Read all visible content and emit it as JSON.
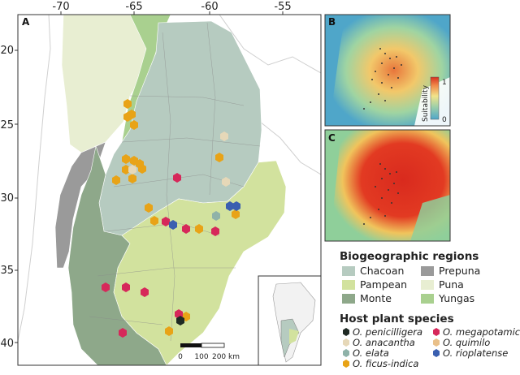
{
  "panels": {
    "a": "A",
    "b": "B",
    "c": "C"
  },
  "axes": {
    "x_ticks": [
      "-70",
      "-65",
      "-60",
      "-55"
    ],
    "y_ticks": [
      "20",
      "25",
      "30",
      "35",
      "40"
    ]
  },
  "scale_bar": {
    "labels": [
      "0",
      "100",
      "200 km"
    ]
  },
  "suitability_legend": {
    "title": "Suitability",
    "max": "1",
    "min": "0"
  },
  "regions_legend": {
    "title": "Biogeographic regions",
    "items": [
      {
        "label": "Chacoan",
        "color": "#b6cbc0"
      },
      {
        "label": "Pampean",
        "color": "#d2e29e"
      },
      {
        "label": "Monte",
        "color": "#8ea88a"
      },
      {
        "label": "Prepuna",
        "color": "#9a9a9a"
      },
      {
        "label": "Puna",
        "color": "#e8eed2"
      },
      {
        "label": "Yungas",
        "color": "#a9d08f"
      }
    ]
  },
  "species_legend": {
    "title": "Host plant species",
    "items": [
      {
        "label": "O. penicilligera",
        "color": "#1f2a24"
      },
      {
        "label": "O. anacantha",
        "color": "#e6d8b8"
      },
      {
        "label": "O. elata",
        "color": "#8fb2a8"
      },
      {
        "label": "O. ficus-indica",
        "color": "#e8a317"
      },
      {
        "label": "O. megapotamica",
        "color": "#d6285a"
      },
      {
        "label": "O. quimilo",
        "color": "#e9c08a"
      },
      {
        "label": "O. rioplatense",
        "color": "#3a5fb0"
      }
    ]
  }
}
